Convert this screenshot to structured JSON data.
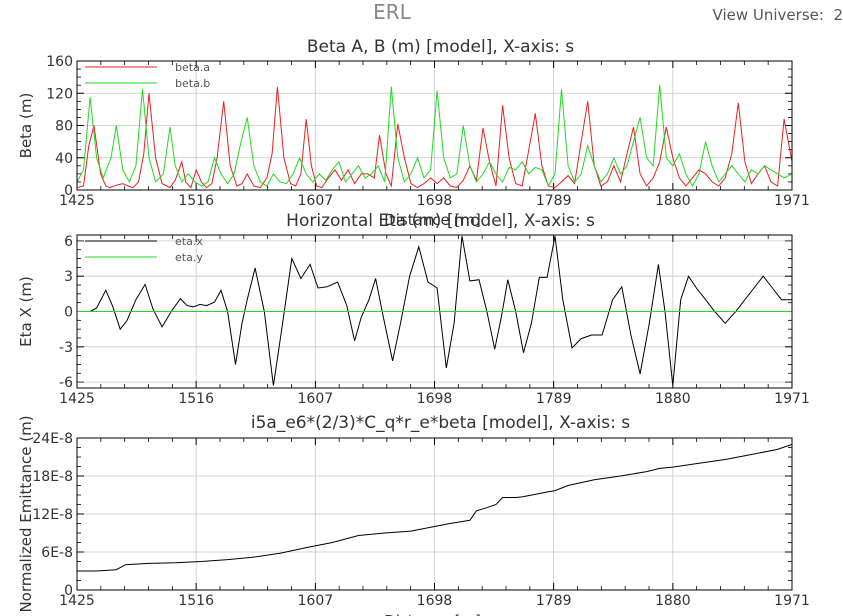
{
  "header": {
    "title": "ERL",
    "view_universe": "View Universe:  2"
  },
  "chart_data": [
    {
      "type": "line",
      "title": "Beta A, B (m) [model],  X-axis: s",
      "xlabel": "Distance [m]",
      "ylabel": "Beta (m)",
      "xlim": [
        1425,
        1971
      ],
      "ylim": [
        0,
        160
      ],
      "xticks": [
        "1425",
        "1516",
        "1607",
        "1698",
        "1789",
        "1880",
        "1971"
      ],
      "yticks": [
        "0",
        "40",
        "80",
        "120",
        "160"
      ],
      "legend_position": "top-left",
      "series": [
        {
          "name": "beta.a",
          "color": "#e82020",
          "x": [
            1425,
            1430,
            1434,
            1438,
            1443,
            1447,
            1450,
            1455,
            1460,
            1464,
            1468,
            1472,
            1476,
            1480,
            1485,
            1490,
            1496,
            1500,
            1505,
            1508,
            1512,
            1516,
            1520,
            1524,
            1528,
            1532,
            1537,
            1542,
            1547,
            1551,
            1555,
            1560,
            1565,
            1570,
            1574,
            1578,
            1583,
            1588,
            1592,
            1596,
            1600,
            1604,
            1608,
            1612,
            1617,
            1622,
            1627,
            1632,
            1637,
            1642,
            1647,
            1652,
            1656,
            1661,
            1665,
            1670,
            1675,
            1680,
            1685,
            1690,
            1695,
            1700,
            1705,
            1710,
            1715,
            1720,
            1725,
            1730,
            1735,
            1740,
            1745,
            1750,
            1755,
            1760,
            1765,
            1770,
            1775,
            1780,
            1785,
            1790,
            1795,
            1800,
            1805,
            1810,
            1815,
            1820,
            1825,
            1830,
            1835,
            1840,
            1845,
            1850,
            1855,
            1860,
            1865,
            1870,
            1875,
            1880,
            1885,
            1890,
            1895,
            1900,
            1905,
            1910,
            1915,
            1920,
            1925,
            1930,
            1935,
            1940,
            1945,
            1950,
            1955,
            1960,
            1965,
            1971
          ],
          "values": [
            3,
            5,
            55,
            80,
            20,
            5,
            3,
            6,
            8,
            5,
            3,
            10,
            45,
            120,
            40,
            8,
            3,
            12,
            35,
            10,
            3,
            25,
            10,
            3,
            8,
            40,
            110,
            30,
            5,
            8,
            20,
            5,
            3,
            15,
            45,
            128,
            40,
            8,
            5,
            20,
            88,
            30,
            5,
            3,
            15,
            25,
            12,
            25,
            8,
            20,
            20,
            15,
            68,
            20,
            5,
            82,
            40,
            8,
            3,
            8,
            15,
            8,
            15,
            5,
            3,
            12,
            30,
            12,
            77,
            35,
            5,
            105,
            40,
            8,
            5,
            50,
            95,
            30,
            5,
            3,
            10,
            18,
            8,
            60,
            110,
            30,
            5,
            10,
            30,
            10,
            45,
            78,
            20,
            5,
            15,
            35,
            78,
            40,
            15,
            5,
            15,
            25,
            20,
            10,
            5,
            15,
            45,
            108,
            35,
            8,
            20,
            30,
            10,
            5,
            88,
            35
          ]
        },
        {
          "name": "beta.b",
          "color": "#22d822",
          "x": [
            1425,
            1430,
            1435,
            1440,
            1445,
            1451,
            1455,
            1460,
            1465,
            1470,
            1475,
            1480,
            1485,
            1491,
            1496,
            1500,
            1505,
            1510,
            1515,
            1520,
            1525,
            1530,
            1535,
            1540,
            1545,
            1550,
            1555,
            1560,
            1565,
            1570,
            1575,
            1580,
            1585,
            1590,
            1595,
            1600,
            1605,
            1610,
            1615,
            1620,
            1625,
            1630,
            1635,
            1640,
            1645,
            1650,
            1655,
            1660,
            1665,
            1670,
            1675,
            1680,
            1685,
            1690,
            1695,
            1700,
            1705,
            1710,
            1715,
            1720,
            1725,
            1730,
            1735,
            1740,
            1745,
            1750,
            1755,
            1760,
            1765,
            1770,
            1775,
            1780,
            1785,
            1790,
            1795,
            1800,
            1805,
            1810,
            1815,
            1820,
            1825,
            1830,
            1835,
            1840,
            1845,
            1850,
            1855,
            1860,
            1865,
            1870,
            1875,
            1880,
            1885,
            1890,
            1895,
            1900,
            1905,
            1910,
            1915,
            1920,
            1925,
            1930,
            1935,
            1940,
            1945,
            1950,
            1955,
            1960,
            1965,
            1971
          ],
          "values": [
            10,
            25,
            115,
            40,
            15,
            40,
            80,
            25,
            10,
            30,
            125,
            40,
            10,
            20,
            78,
            30,
            10,
            20,
            10,
            5,
            10,
            40,
            20,
            8,
            20,
            58,
            90,
            30,
            10,
            5,
            20,
            10,
            8,
            20,
            40,
            20,
            10,
            20,
            12,
            25,
            35,
            10,
            20,
            30,
            15,
            20,
            30,
            10,
            128,
            40,
            10,
            20,
            40,
            15,
            25,
            123,
            40,
            15,
            20,
            80,
            30,
            10,
            20,
            35,
            20,
            10,
            28,
            25,
            35,
            20,
            28,
            25,
            5,
            20,
            125,
            30,
            10,
            20,
            55,
            30,
            10,
            20,
            40,
            20,
            30,
            60,
            90,
            40,
            30,
            130,
            40,
            30,
            45,
            20,
            5,
            20,
            60,
            30,
            10,
            20,
            30,
            20,
            10,
            25,
            20,
            30,
            25,
            20,
            15,
            20
          ]
        }
      ]
    },
    {
      "type": "line",
      "title": "Horizontal Eta (m) [model],  X-axis: s",
      "xlabel": "",
      "ylabel": "Eta X (m)",
      "xlim": [
        1425,
        1971
      ],
      "ylim": [
        -6.5,
        6.5
      ],
      "xticks": [
        "1425",
        "1516",
        "1607",
        "1698",
        "1789",
        "1880",
        "1971"
      ],
      "yticks": [
        "-6",
        "-3",
        "0",
        "3",
        "6"
      ],
      "legend_position": "top-left",
      "series": [
        {
          "name": "eta.x",
          "color": "#000000",
          "x": [
            1425,
            1435,
            1440,
            1447,
            1452,
            1458,
            1463,
            1470,
            1477,
            1483,
            1490,
            1497,
            1504,
            1509,
            1514,
            1519,
            1524,
            1530,
            1535,
            1540,
            1546,
            1551,
            1555,
            1561,
            1568,
            1575,
            1582,
            1589,
            1596,
            1603,
            1609,
            1616,
            1624,
            1631,
            1637,
            1642,
            1648,
            1653,
            1659,
            1666,
            1672,
            1679,
            1686,
            1693,
            1700,
            1707,
            1713,
            1719,
            1725,
            1732,
            1738,
            1744,
            1749,
            1754,
            1760,
            1766,
            1772,
            1778,
            1784,
            1790,
            1796,
            1803,
            1810,
            1818,
            1826,
            1834,
            1841,
            1848,
            1855,
            1862,
            1869,
            1874,
            1880,
            1886,
            1892,
            1898,
            1905,
            1912,
            1920,
            1928,
            1935,
            1942,
            1949,
            1956,
            1963,
            1971
          ],
          "values": [
            0,
            0,
            0.3,
            1.8,
            0.5,
            -1.5,
            -0.8,
            1,
            2.3,
            0.2,
            -1.3,
            0,
            1.1,
            0.5,
            0.4,
            0.6,
            0.5,
            0.8,
            1.8,
            0,
            -4.5,
            -1,
            1,
            3.7,
            0,
            -6.3,
            -1,
            4.5,
            2.8,
            4,
            2,
            2.1,
            2.5,
            0.5,
            -2.5,
            -0.5,
            1,
            2.8,
            -0.5,
            -4.2,
            -1,
            3,
            5.5,
            2.5,
            2,
            -4.8,
            -1,
            6.4,
            2.6,
            2.7,
            0,
            -3.2,
            -0.5,
            2.7,
            0,
            -3.5,
            -1,
            2.9,
            2.9,
            6.4,
            1,
            -3.1,
            -2.3,
            -2,
            -2,
            1,
            2.1,
            -2,
            -5.3,
            -1,
            4,
            0,
            -6.3,
            1,
            3,
            2,
            1,
            0,
            -1,
            0,
            1,
            2,
            3,
            2,
            1,
            1
          ]
        },
        {
          "name": "eta.y",
          "color": "#22d822",
          "x": [
            1425,
            1971
          ],
          "values": [
            0,
            0
          ]
        }
      ]
    },
    {
      "type": "line",
      "title": "i5a_e6*(2/3)*C_q*r_e*beta [model],  X-axis: s",
      "xlabel": "Distance [m]",
      "ylabel": "Normalized Emittance (m)",
      "xlim": [
        1425,
        1971
      ],
      "ylim": [
        0,
        2.4e-07
      ],
      "xticks": [
        "1425",
        "1516",
        "1607",
        "1698",
        "1789",
        "1880",
        "1971"
      ],
      "yticks": [
        "0",
        "6E-8",
        "12E-8",
        "18E-8",
        "24E-8"
      ],
      "series": [
        {
          "name": "",
          "color": "#000000",
          "x": [
            1425,
            1440,
            1455,
            1462,
            1480,
            1500,
            1520,
            1540,
            1560,
            1580,
            1600,
            1620,
            1640,
            1660,
            1680,
            1700,
            1710,
            1725,
            1730,
            1738,
            1745,
            1750,
            1760,
            1765,
            1785,
            1790,
            1800,
            1820,
            1840,
            1860,
            1870,
            1880,
            1900,
            1920,
            1940,
            1960,
            1971
          ],
          "values": [
            3e-08,
            3e-08,
            3.2e-08,
            4e-08,
            4.2e-08,
            4.3e-08,
            4.5e-08,
            4.8e-08,
            5.2e-08,
            5.8e-08,
            6.7e-08,
            7.5e-08,
            8.6e-08,
            9e-08,
            9.3e-08,
            1.01e-07,
            1.05e-07,
            1.1e-07,
            1.25e-07,
            1.3e-07,
            1.35e-07,
            1.46e-07,
            1.46e-07,
            1.47e-07,
            1.55e-07,
            1.57e-07,
            1.65e-07,
            1.74e-07,
            1.8e-07,
            1.87e-07,
            1.92e-07,
            1.94e-07,
            2e-07,
            2.06e-07,
            2.14e-07,
            2.22e-07,
            2.3e-07
          ]
        }
      ]
    }
  ]
}
